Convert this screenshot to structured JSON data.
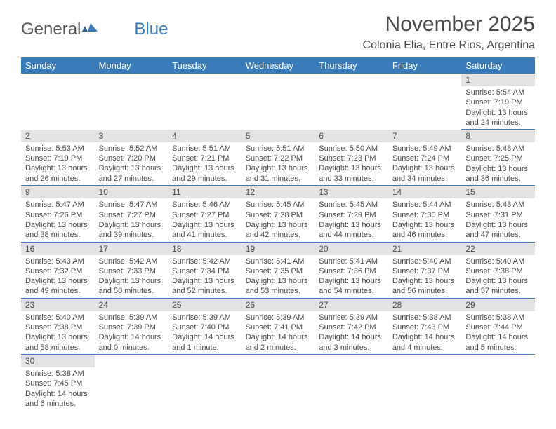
{
  "logo": {
    "text1": "General",
    "text2": "Blue"
  },
  "title": "November 2025",
  "location": "Colonia Elia, Entre Rios, Argentina",
  "colors": {
    "header_bg": "#3a7ab8",
    "daynum_bg": "#e3e3e3",
    "text": "#4a4a4a",
    "border": "#3a7ab8",
    "background": "#ffffff"
  },
  "dayNames": [
    "Sunday",
    "Monday",
    "Tuesday",
    "Wednesday",
    "Thursday",
    "Friday",
    "Saturday"
  ],
  "weeks": [
    [
      null,
      null,
      null,
      null,
      null,
      null,
      {
        "n": "1",
        "sr": "5:54 AM",
        "ss": "7:19 PM",
        "dl": "13 hours and 24 minutes."
      }
    ],
    [
      {
        "n": "2",
        "sr": "5:53 AM",
        "ss": "7:19 PM",
        "dl": "13 hours and 26 minutes."
      },
      {
        "n": "3",
        "sr": "5:52 AM",
        "ss": "7:20 PM",
        "dl": "13 hours and 27 minutes."
      },
      {
        "n": "4",
        "sr": "5:51 AM",
        "ss": "7:21 PM",
        "dl": "13 hours and 29 minutes."
      },
      {
        "n": "5",
        "sr": "5:51 AM",
        "ss": "7:22 PM",
        "dl": "13 hours and 31 minutes."
      },
      {
        "n": "6",
        "sr": "5:50 AM",
        "ss": "7:23 PM",
        "dl": "13 hours and 33 minutes."
      },
      {
        "n": "7",
        "sr": "5:49 AM",
        "ss": "7:24 PM",
        "dl": "13 hours and 34 minutes."
      },
      {
        "n": "8",
        "sr": "5:48 AM",
        "ss": "7:25 PM",
        "dl": "13 hours and 36 minutes."
      }
    ],
    [
      {
        "n": "9",
        "sr": "5:47 AM",
        "ss": "7:26 PM",
        "dl": "13 hours and 38 minutes."
      },
      {
        "n": "10",
        "sr": "5:47 AM",
        "ss": "7:27 PM",
        "dl": "13 hours and 39 minutes."
      },
      {
        "n": "11",
        "sr": "5:46 AM",
        "ss": "7:27 PM",
        "dl": "13 hours and 41 minutes."
      },
      {
        "n": "12",
        "sr": "5:45 AM",
        "ss": "7:28 PM",
        "dl": "13 hours and 42 minutes."
      },
      {
        "n": "13",
        "sr": "5:45 AM",
        "ss": "7:29 PM",
        "dl": "13 hours and 44 minutes."
      },
      {
        "n": "14",
        "sr": "5:44 AM",
        "ss": "7:30 PM",
        "dl": "13 hours and 46 minutes."
      },
      {
        "n": "15",
        "sr": "5:43 AM",
        "ss": "7:31 PM",
        "dl": "13 hours and 47 minutes."
      }
    ],
    [
      {
        "n": "16",
        "sr": "5:43 AM",
        "ss": "7:32 PM",
        "dl": "13 hours and 49 minutes."
      },
      {
        "n": "17",
        "sr": "5:42 AM",
        "ss": "7:33 PM",
        "dl": "13 hours and 50 minutes."
      },
      {
        "n": "18",
        "sr": "5:42 AM",
        "ss": "7:34 PM",
        "dl": "13 hours and 52 minutes."
      },
      {
        "n": "19",
        "sr": "5:41 AM",
        "ss": "7:35 PM",
        "dl": "13 hours and 53 minutes."
      },
      {
        "n": "20",
        "sr": "5:41 AM",
        "ss": "7:36 PM",
        "dl": "13 hours and 54 minutes."
      },
      {
        "n": "21",
        "sr": "5:40 AM",
        "ss": "7:37 PM",
        "dl": "13 hours and 56 minutes."
      },
      {
        "n": "22",
        "sr": "5:40 AM",
        "ss": "7:38 PM",
        "dl": "13 hours and 57 minutes."
      }
    ],
    [
      {
        "n": "23",
        "sr": "5:40 AM",
        "ss": "7:38 PM",
        "dl": "13 hours and 58 minutes."
      },
      {
        "n": "24",
        "sr": "5:39 AM",
        "ss": "7:39 PM",
        "dl": "14 hours and 0 minutes."
      },
      {
        "n": "25",
        "sr": "5:39 AM",
        "ss": "7:40 PM",
        "dl": "14 hours and 1 minute."
      },
      {
        "n": "26",
        "sr": "5:39 AM",
        "ss": "7:41 PM",
        "dl": "14 hours and 2 minutes."
      },
      {
        "n": "27",
        "sr": "5:39 AM",
        "ss": "7:42 PM",
        "dl": "14 hours and 3 minutes."
      },
      {
        "n": "28",
        "sr": "5:38 AM",
        "ss": "7:43 PM",
        "dl": "14 hours and 4 minutes."
      },
      {
        "n": "29",
        "sr": "5:38 AM",
        "ss": "7:44 PM",
        "dl": "14 hours and 5 minutes."
      }
    ],
    [
      {
        "n": "30",
        "sr": "5:38 AM",
        "ss": "7:45 PM",
        "dl": "14 hours and 6 minutes."
      },
      null,
      null,
      null,
      null,
      null,
      null
    ]
  ],
  "labels": {
    "sunrise": "Sunrise: ",
    "sunset": "Sunset: ",
    "daylight": "Daylight: "
  }
}
